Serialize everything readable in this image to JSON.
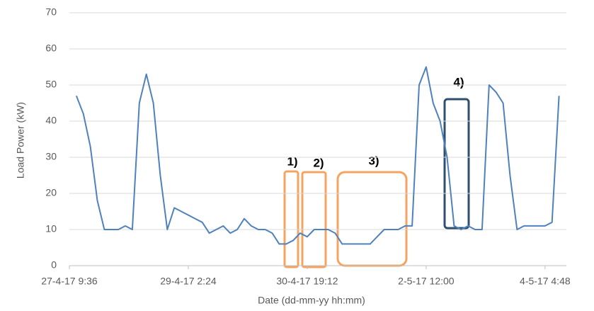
{
  "chart_data": {
    "type": "line",
    "xlabel": "Date (dd-mm-yy hh:mm)",
    "ylabel": "Load Power (kW)",
    "categories": [
      "27-4-17 9:36",
      null,
      null,
      null,
      null,
      null,
      null,
      null,
      null,
      null,
      null,
      null,
      null,
      null,
      null,
      null,
      null,
      "29-4-17 2:24",
      null,
      null,
      null,
      null,
      null,
      null,
      null,
      null,
      null,
      null,
      null,
      null,
      null,
      null,
      null,
      null,
      "30-4-17 19:12",
      null,
      null,
      null,
      null,
      null,
      null,
      null,
      null,
      null,
      null,
      null,
      null,
      null,
      null,
      null,
      null,
      "2-5-17 12:00",
      null,
      null,
      null,
      null,
      null,
      null,
      null,
      null,
      null,
      null,
      null,
      null,
      null,
      null,
      null,
      null,
      "4-5-17 4:48",
      null,
      null
    ],
    "series": [
      {
        "name": "Load Power",
        "color": "#4f81bd",
        "values": [
          null,
          47,
          42,
          33,
          18,
          10,
          10,
          10,
          11,
          10,
          45,
          53,
          45,
          25,
          10,
          16,
          15,
          14,
          13,
          12,
          9,
          10,
          11,
          9,
          10,
          13,
          11,
          10,
          10,
          9,
          6,
          6,
          7,
          9,
          8,
          10,
          10,
          10,
          9,
          6,
          6,
          6,
          6,
          6,
          8,
          10,
          10,
          10,
          11,
          11,
          50,
          55,
          45,
          40,
          30,
          11,
          10,
          11,
          10,
          10,
          50,
          48,
          45,
          25,
          10,
          11,
          11,
          11,
          11,
          12,
          47
        ]
      }
    ],
    "ylim": [
      0,
      70
    ],
    "yticks": [
      0,
      10,
      20,
      30,
      40,
      50,
      60,
      70
    ],
    "grid": true,
    "annotations": [
      "1)",
      "2)",
      "3)",
      "4)"
    ]
  }
}
